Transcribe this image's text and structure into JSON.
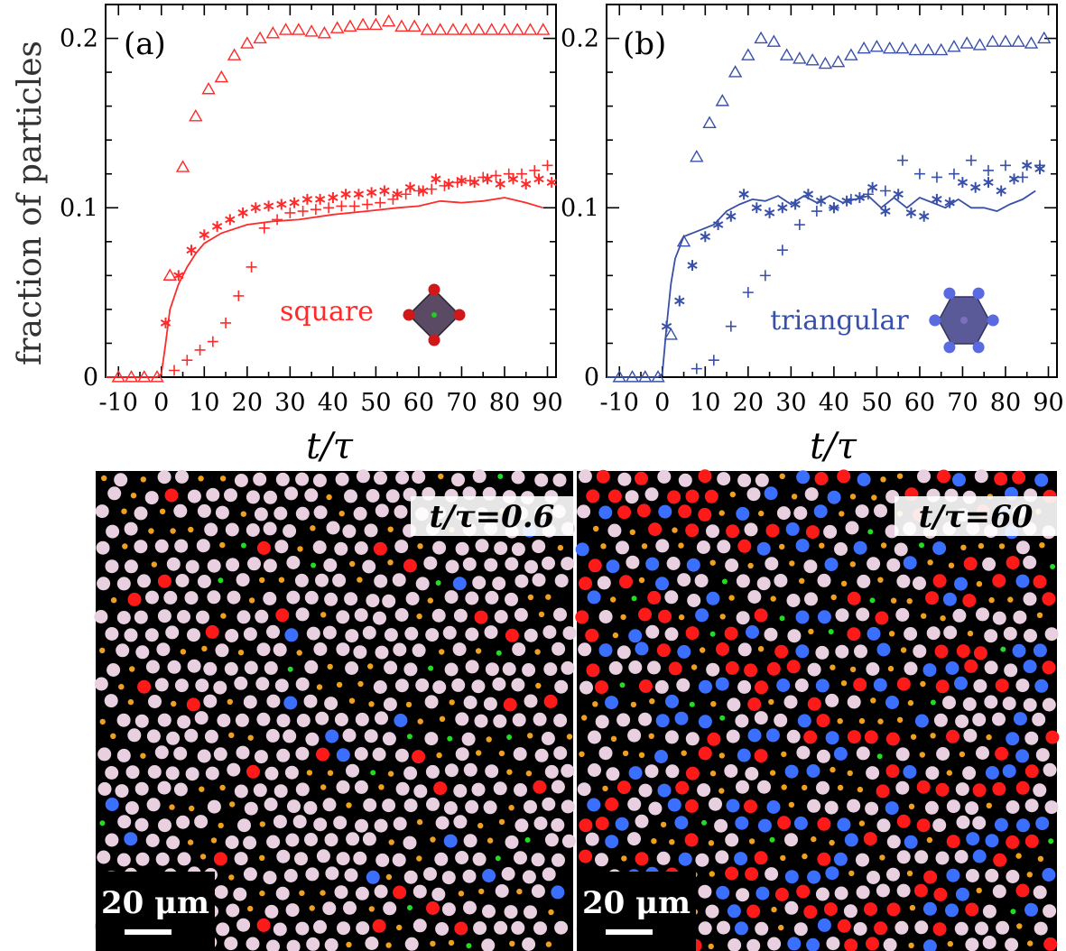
{
  "colors": {
    "panel_a": "#ff2a2a",
    "panel_b": "#3850a8",
    "square_particle": "#ff1a1a",
    "triangular_particle": "#3a6fff",
    "liquid_particle": "#e8d0e0",
    "small_particle": "#f0a020",
    "defect_particle": "#22dd22"
  },
  "axes": {
    "ylabel": "fraction of  particles",
    "xlabel": "t/τ"
  },
  "snapshots": [
    {
      "time_label": "t/τ=0.6",
      "scale_label": "20 μm",
      "red_fraction": 0.04,
      "blue_fraction": 0.02
    },
    {
      "time_label": "t/τ=60",
      "scale_label": "20 μm",
      "red_fraction": 0.22,
      "blue_fraction": 0.2
    }
  ],
  "chart_data": [
    {
      "type": "scatter",
      "panel_label": "(a)",
      "lattice_label": "square",
      "icon": "square-lattice-molecule-icon",
      "xlim": [
        -13,
        92
      ],
      "ylim": [
        0,
        0.22
      ],
      "xticks": [
        -10,
        0,
        10,
        20,
        30,
        40,
        50,
        60,
        70,
        80,
        90
      ],
      "yticks": [
        0,
        0.1,
        0.2
      ],
      "ytick_labels": [
        "0",
        "0.1",
        "0.2"
      ],
      "series": [
        {
          "marker": "triangle",
          "x": [
            -10,
            -7,
            -4,
            -1,
            2,
            5,
            8,
            11,
            14,
            17,
            20,
            23,
            26,
            29,
            32,
            35,
            38,
            41,
            44,
            47,
            50,
            53,
            56,
            59,
            62,
            65,
            68,
            71,
            74,
            77,
            80,
            83,
            86,
            89
          ],
          "y": [
            0,
            0,
            0,
            0,
            0.06,
            0.124,
            0.154,
            0.17,
            0.177,
            0.19,
            0.197,
            0.2,
            0.203,
            0.205,
            0.205,
            0.204,
            0.203,
            0.206,
            0.207,
            0.208,
            0.208,
            0.21,
            0.207,
            0.207,
            0.205,
            0.205,
            0.205,
            0.205,
            0.205,
            0.205,
            0.205,
            0.205,
            0.205,
            0.205
          ]
        },
        {
          "marker": "asterisk",
          "x": [
            1,
            4,
            7,
            10,
            13,
            16,
            19,
            22,
            25,
            28,
            31,
            34,
            37,
            40,
            43,
            46,
            49,
            52,
            55,
            58,
            61,
            64,
            67,
            70,
            73,
            76,
            79,
            82,
            85,
            88,
            91
          ],
          "y": [
            0.032,
            0.06,
            0.075,
            0.084,
            0.089,
            0.093,
            0.097,
            0.1,
            0.101,
            0.102,
            0.103,
            0.105,
            0.105,
            0.106,
            0.108,
            0.108,
            0.109,
            0.11,
            0.108,
            0.112,
            0.11,
            0.117,
            0.114,
            0.116,
            0.115,
            0.117,
            0.114,
            0.117,
            0.114,
            0.117,
            0.115
          ]
        },
        {
          "marker": "plus",
          "x": [
            3,
            6,
            9,
            12,
            15,
            18,
            21,
            24,
            27,
            30,
            33,
            36,
            39,
            42,
            45,
            48,
            51,
            54,
            57,
            60,
            63,
            66,
            69,
            72,
            75,
            78,
            81,
            84,
            87,
            90
          ],
          "y": [
            0.004,
            0.01,
            0.016,
            0.021,
            0.032,
            0.048,
            0.065,
            0.088,
            0.093,
            0.097,
            0.098,
            0.099,
            0.1,
            0.101,
            0.101,
            0.102,
            0.103,
            0.105,
            0.108,
            0.11,
            0.111,
            0.113,
            0.115,
            0.116,
            0.118,
            0.119,
            0.12,
            0.12,
            0.122,
            0.125
          ]
        },
        {
          "marker": "line",
          "x": [
            -13,
            -1,
            0,
            1,
            2,
            4,
            6,
            8,
            10,
            14,
            20,
            26,
            32,
            40,
            48,
            55,
            60,
            65,
            70,
            75,
            80,
            85,
            89
          ],
          "y": [
            0,
            0,
            0.002,
            0.02,
            0.04,
            0.055,
            0.065,
            0.073,
            0.079,
            0.085,
            0.09,
            0.092,
            0.093,
            0.096,
            0.098,
            0.1,
            0.101,
            0.104,
            0.103,
            0.104,
            0.106,
            0.103,
            0.1
          ]
        }
      ]
    },
    {
      "type": "scatter",
      "panel_label": "(b)",
      "lattice_label": "triangular",
      "icon": "triangular-lattice-molecule-icon",
      "xlim": [
        -13,
        92
      ],
      "ylim": [
        0,
        0.22
      ],
      "xticks": [
        -10,
        0,
        10,
        20,
        30,
        40,
        50,
        60,
        70,
        80,
        90
      ],
      "yticks": [
        0,
        0.1,
        0.2
      ],
      "ytick_labels": [
        "0",
        "0.1",
        "0.2"
      ],
      "series": [
        {
          "marker": "triangle",
          "x": [
            -10,
            -7,
            -4,
            -1,
            2,
            5,
            8,
            11,
            14,
            17,
            20,
            23,
            26,
            29,
            32,
            35,
            38,
            41,
            44,
            47,
            50,
            53,
            56,
            59,
            62,
            65,
            68,
            71,
            74,
            77,
            80,
            83,
            86,
            89
          ],
          "y": [
            0,
            0,
            0,
            0,
            0.025,
            0.08,
            0.13,
            0.15,
            0.163,
            0.18,
            0.19,
            0.2,
            0.198,
            0.19,
            0.188,
            0.187,
            0.185,
            0.186,
            0.19,
            0.194,
            0.195,
            0.194,
            0.194,
            0.193,
            0.193,
            0.193,
            0.195,
            0.197,
            0.196,
            0.198,
            0.198,
            0.198,
            0.197,
            0.2
          ]
        },
        {
          "marker": "asterisk",
          "x": [
            1,
            4,
            7,
            10,
            13,
            16,
            19,
            22,
            25,
            28,
            31,
            34,
            37,
            40,
            43,
            46,
            49,
            52,
            55,
            58,
            61,
            64,
            67,
            70,
            73,
            76,
            79,
            82,
            85,
            88
          ],
          "y": [
            0.03,
            0.045,
            0.066,
            0.083,
            0.09,
            0.095,
            0.108,
            0.1,
            0.097,
            0.1,
            0.102,
            0.108,
            0.104,
            0.1,
            0.104,
            0.106,
            0.112,
            0.098,
            0.108,
            0.097,
            0.095,
            0.105,
            0.103,
            0.115,
            0.112,
            0.115,
            0.11,
            0.117,
            0.125,
            0.123
          ]
        },
        {
          "marker": "plus",
          "x": [
            8,
            12,
            16,
            20,
            24,
            28,
            32,
            36,
            40,
            44,
            48,
            52,
            56,
            60,
            64,
            68,
            72,
            76,
            80,
            84,
            88
          ],
          "y": [
            0.005,
            0.01,
            0.03,
            0.05,
            0.06,
            0.075,
            0.09,
            0.098,
            0.1,
            0.105,
            0.108,
            0.11,
            0.128,
            0.12,
            0.118,
            0.12,
            0.128,
            0.122,
            0.125,
            0.118,
            0.125
          ]
        },
        {
          "marker": "line",
          "x": [
            -13,
            -1,
            0,
            1,
            2,
            3,
            5,
            7,
            9,
            12,
            15,
            18,
            21,
            24,
            27,
            30,
            33,
            36,
            39,
            42,
            45,
            48,
            51,
            54,
            57,
            60,
            63,
            66,
            69,
            72,
            75,
            78,
            81,
            84,
            87
          ],
          "y": [
            0,
            0,
            0.002,
            0.03,
            0.055,
            0.07,
            0.083,
            0.085,
            0.087,
            0.09,
            0.098,
            0.102,
            0.105,
            0.104,
            0.107,
            0.102,
            0.107,
            0.103,
            0.107,
            0.103,
            0.105,
            0.107,
            0.1,
            0.106,
            0.1,
            0.106,
            0.103,
            0.1,
            0.105,
            0.1,
            0.1,
            0.098,
            0.102,
            0.105,
            0.11
          ]
        }
      ]
    }
  ]
}
